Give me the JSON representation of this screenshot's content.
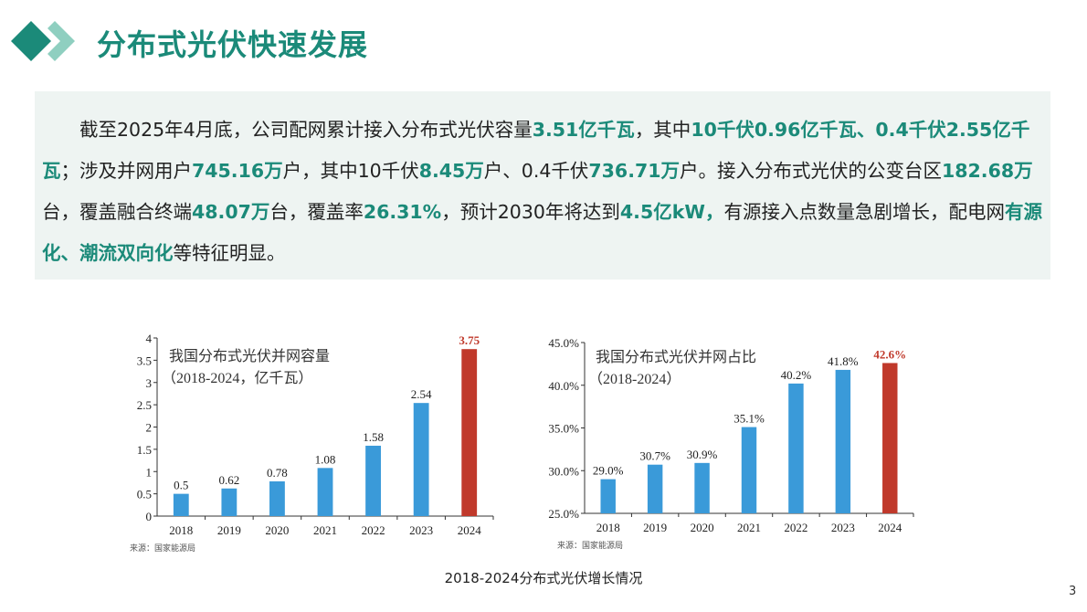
{
  "header": {
    "title": "分布式光伏快速发展",
    "accent": "#1b8a79",
    "accent_light": "#8fcfc0"
  },
  "paragraph": {
    "segments": [
      {
        "text": "　　截至2025年4月底，公司配网累计接入分布式光伏容量",
        "bold": false
      },
      {
        "text": "3.51亿千瓦",
        "bold": true
      },
      {
        "text": "，其中",
        "bold": false
      },
      {
        "text": "10千伏0.96亿千瓦、0.4千伏2.55亿千瓦",
        "bold": true
      },
      {
        "text": "；涉及并网用户",
        "bold": false
      },
      {
        "text": "745.16万",
        "bold": true
      },
      {
        "text": "户，其中10千伏",
        "bold": false
      },
      {
        "text": "8.45万",
        "bold": true
      },
      {
        "text": "户、0.4千伏",
        "bold": false
      },
      {
        "text": "736.71万",
        "bold": true
      },
      {
        "text": "户。接入分布式光伏的公变台区",
        "bold": false
      },
      {
        "text": "182.68万",
        "bold": true
      },
      {
        "text": "台，覆盖融合终端",
        "bold": false
      },
      {
        "text": "48.07万",
        "bold": true
      },
      {
        "text": "台，覆盖率",
        "bold": false
      },
      {
        "text": "26.31%",
        "bold": true
      },
      {
        "text": "，预计2030年将达到",
        "bold": false
      },
      {
        "text": "4.5亿kW，",
        "bold": true
      },
      {
        "text": "有源接入点数量急剧增长，配电网",
        "bold": false
      },
      {
        "text": "有源化、潮流双向化",
        "bold": true
      },
      {
        "text": "等特征明显。",
        "bold": false
      }
    ]
  },
  "chart_data": [
    {
      "type": "bar",
      "title": "我国分布式光伏并网容量",
      "subtitle": "（2018-2024，亿千瓦）",
      "categories": [
        "2018",
        "2019",
        "2020",
        "2021",
        "2022",
        "2023",
        "2024"
      ],
      "values": [
        0.5,
        0.62,
        0.78,
        1.08,
        1.58,
        2.54,
        3.75
      ],
      "data_labels": [
        "0.5",
        "0.62",
        "0.78",
        "1.08",
        "1.58",
        "2.54",
        "3.75"
      ],
      "ylim": [
        0,
        4
      ],
      "yticks": [
        "0",
        "0.5",
        "1",
        "1.5",
        "2",
        "2.5",
        "3",
        "3.5",
        "4"
      ],
      "source": "来源：国家能源局",
      "grid": false,
      "colors": {
        "bar": "#3a9ad9",
        "highlight": "#c0392b"
      }
    },
    {
      "type": "bar",
      "title": "我国分布式光伏并网占比",
      "subtitle": "（2018-2024）",
      "categories": [
        "2018",
        "2019",
        "2020",
        "2021",
        "2022",
        "2023",
        "2024"
      ],
      "values": [
        29.0,
        30.7,
        30.9,
        35.1,
        40.2,
        41.8,
        42.6
      ],
      "data_labels": [
        "29.0%",
        "30.7%",
        "30.9%",
        "35.1%",
        "40.2%",
        "41.8%",
        "42.6%"
      ],
      "ylim": [
        25,
        45
      ],
      "yticks": [
        "25.0%",
        "30.0%",
        "35.0%",
        "40.0%",
        "45.0%"
      ],
      "source": "来源：国家能源局",
      "grid": false,
      "colors": {
        "bar": "#3a9ad9",
        "highlight": "#c0392b"
      }
    }
  ],
  "caption": "2018-2024分布式光伏增长情况",
  "page_number": "3"
}
